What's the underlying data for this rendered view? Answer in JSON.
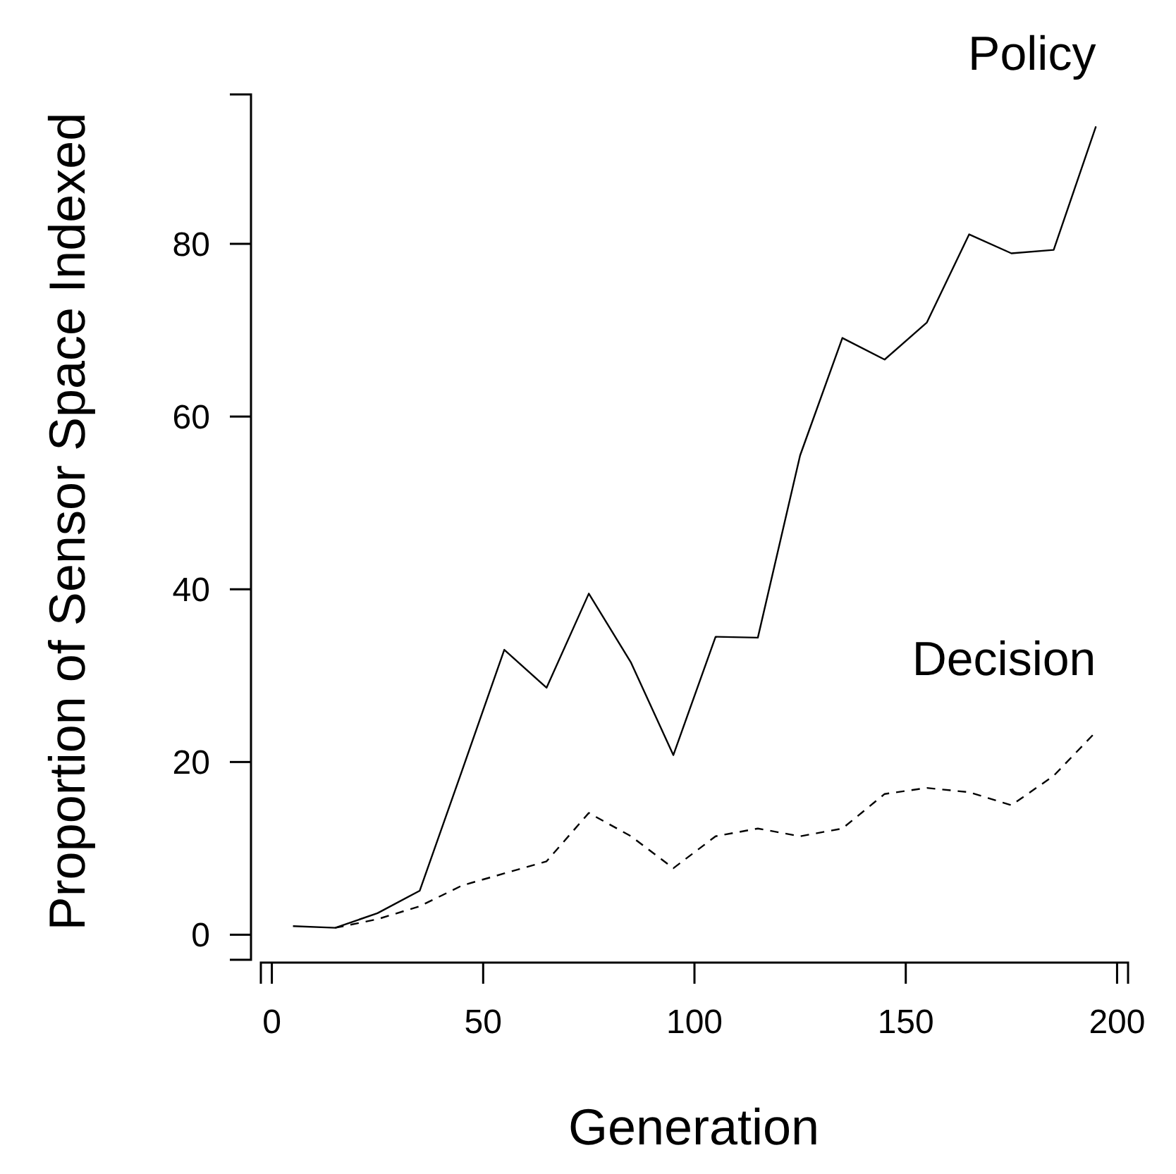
{
  "chart_data": {
    "type": "line",
    "xlabel": "Generation",
    "ylabel": "Proportion of Sensor Space Indexed",
    "xlim": [
      -2.6,
      202.6
    ],
    "ylim": [
      -2.9,
      97.3
    ],
    "xticks": [
      0,
      50,
      100,
      150,
      200
    ],
    "yticks": [
      0,
      20,
      40,
      60,
      80
    ],
    "grid": false,
    "legend": false,
    "marker": "none",
    "series": [
      {
        "name": "Policy",
        "color": "#000000",
        "line_style": "solid",
        "x": [
          5,
          15,
          25,
          35,
          45,
          55,
          65,
          75,
          85,
          95,
          105,
          115,
          125,
          135,
          145,
          155,
          165,
          175,
          185,
          195
        ],
        "values": [
          1,
          0.8,
          2.5,
          5.1,
          19,
          33,
          28.6,
          39.5,
          31.5,
          20.8,
          34.5,
          34.4,
          55.5,
          69.1,
          66.6,
          70.9,
          81.1,
          78.9,
          79.3,
          93.6
        ]
      },
      {
        "name": "Decision",
        "color": "#000000",
        "line_style": "dashed",
        "x": [
          15,
          25,
          35,
          45,
          55,
          65,
          75,
          85,
          95,
          105,
          115,
          125,
          135,
          145,
          155,
          165,
          175,
          185,
          195
        ],
        "values": [
          0.8,
          1.8,
          3.3,
          5.7,
          7.1,
          8.5,
          14.1,
          11.4,
          7.7,
          11.4,
          12.3,
          11.4,
          12.3,
          16.3,
          17,
          16.5,
          15,
          18.4,
          23.5
        ]
      }
    ]
  }
}
